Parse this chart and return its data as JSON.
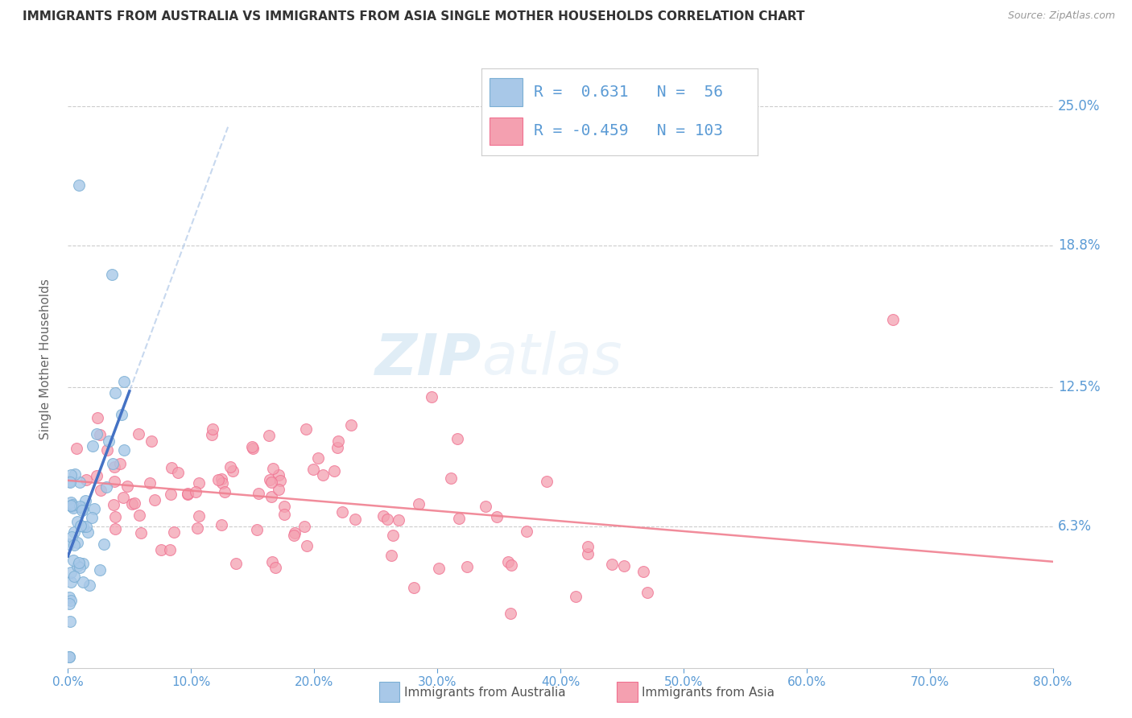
{
  "title": "IMMIGRANTS FROM AUSTRALIA VS IMMIGRANTS FROM ASIA SINGLE MOTHER HOUSEHOLDS CORRELATION CHART",
  "source": "Source: ZipAtlas.com",
  "ylabel": "Single Mother Households",
  "legend_label1": "Immigrants from Australia",
  "legend_label2": "Immigrants from Asia",
  "R1": 0.631,
  "N1": 56,
  "R2": -0.459,
  "N2": 103,
  "color_aus": "#a8c8e8",
  "color_asia": "#f4a0b0",
  "color_aus_edge": "#7bafd4",
  "color_asia_edge": "#f07090",
  "color_text_blue": "#5b9bd5",
  "color_trendline_aus": "#4472c4",
  "color_trendline_asia": "#f08090",
  "color_trendline_aus_ext": "#b0c8e8",
  "watermark_zip": "ZIP",
  "watermark_atlas": "atlas",
  "background_color": "#ffffff",
  "grid_color": "#cccccc",
  "xmin": 0.0,
  "xmax": 0.8,
  "ymin": 0.0,
  "ymax": 0.275,
  "ytick_labels": [
    "6.3%",
    "12.5%",
    "18.8%",
    "25.0%"
  ],
  "ytick_values": [
    0.063,
    0.125,
    0.188,
    0.25
  ],
  "xtick_vals": [
    0.0,
    0.1,
    0.2,
    0.3,
    0.4,
    0.5,
    0.6,
    0.7,
    0.8
  ],
  "xtick_labels": [
    "0.0%",
    "10.0%",
    "20.0%",
    "30.0%",
    "40.0%",
    "50.0%",
    "60.0%",
    "70.0%",
    "80.0%"
  ]
}
